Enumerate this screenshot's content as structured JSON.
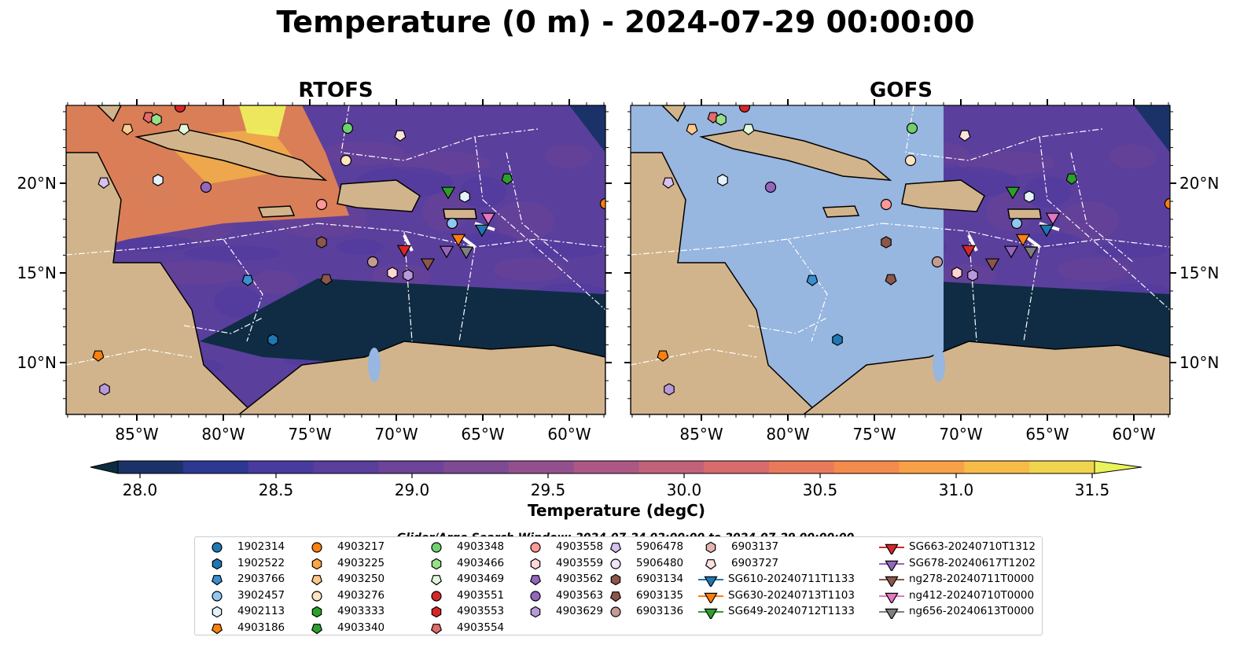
{
  "title": "Temperature (0 m) - 2024-07-29 00:00:00",
  "panels": [
    {
      "title": "RTOFS"
    },
    {
      "title": "GOFS"
    }
  ],
  "axes": {
    "lon_ticks": [
      "85°W",
      "80°W",
      "75°W",
      "70°W",
      "65°W",
      "60°W"
    ],
    "lat_ticks": [
      "20°N",
      "15°N",
      "10°N"
    ]
  },
  "colorbar": {
    "label": "Temperature (degC)",
    "ticks": [
      "28.0",
      "28.5",
      "29.0",
      "29.5",
      "30.0",
      "30.5",
      "31.0",
      "31.5"
    ],
    "colors": [
      "#0c2b3f",
      "#1b3269",
      "#2d3893",
      "#473ba0",
      "#5a3e9c",
      "#6c4398",
      "#7e4a94",
      "#94508e",
      "#ab5885",
      "#c2617a",
      "#d86b6c",
      "#ea795c",
      "#f38b4d",
      "#f8a147",
      "#f7bb47",
      "#f1d44d",
      "#e9f35a"
    ],
    "extend": "both"
  },
  "search_window": "Glider/Argo Search Window: 2024-07-24 02:00:00 to 2024-07-29 00:00:00",
  "legend": {
    "columns": [
      [
        {
          "label": "1902314",
          "shape": "circle",
          "color": "#1f77b4"
        },
        {
          "label": "1902522",
          "shape": "hexagon",
          "color": "#1f77b4"
        },
        {
          "label": "2903766",
          "shape": "pentagon",
          "color": "#3a8fd0"
        },
        {
          "label": "3902457",
          "shape": "circle",
          "color": "#8fc8f0"
        },
        {
          "label": "4902113",
          "shape": "hexagon",
          "color": "#e3f2fd"
        },
        {
          "label": "4903186",
          "shape": "pentagon",
          "color": "#ff7f0e"
        }
      ],
      [
        {
          "label": "4903217",
          "shape": "circle",
          "color": "#ff7f0e"
        },
        {
          "label": "4903225",
          "shape": "hexagon",
          "color": "#ffa545"
        },
        {
          "label": "4903250",
          "shape": "pentagon",
          "color": "#ffc98b"
        },
        {
          "label": "4903276",
          "shape": "circle",
          "color": "#ffe3c2"
        },
        {
          "label": "4903333",
          "shape": "hexagon",
          "color": "#2ca02c"
        },
        {
          "label": "4903340",
          "shape": "pentagon",
          "color": "#2ca02c"
        }
      ],
      [
        {
          "label": "4903348",
          "shape": "circle",
          "color": "#6fd06f"
        },
        {
          "label": "4903466",
          "shape": "hexagon",
          "color": "#98df8a"
        },
        {
          "label": "4903469",
          "shape": "pentagon",
          "color": "#e2f8dc"
        },
        {
          "label": "4903551",
          "shape": "circle",
          "color": "#d62728"
        },
        {
          "label": "4903553",
          "shape": "hexagon",
          "color": "#d62728"
        },
        {
          "label": "4903554",
          "shape": "pentagon",
          "color": "#e66a6a"
        }
      ],
      [
        {
          "label": "4903558",
          "shape": "circle",
          "color": "#ff9896"
        },
        {
          "label": "4903559",
          "shape": "hexagon",
          "color": "#ffd6d5"
        },
        {
          "label": "4903562",
          "shape": "pentagon",
          "color": "#9467bd"
        },
        {
          "label": "4903563",
          "shape": "circle",
          "color": "#9467bd"
        },
        {
          "label": "4903629",
          "shape": "hexagon",
          "color": "#b89adb"
        }
      ],
      [
        {
          "label": "5906478",
          "shape": "pentagon",
          "color": "#d7c1f0"
        },
        {
          "label": "5906480",
          "shape": "circle",
          "color": "#f0e4fb"
        },
        {
          "label": "6903134",
          "shape": "hexagon",
          "color": "#8c564b"
        },
        {
          "label": "6903135",
          "shape": "pentagon",
          "color": "#8c564b"
        },
        {
          "label": "6903136",
          "shape": "circle",
          "color": "#c49c94"
        }
      ],
      [
        {
          "label": "6903137",
          "shape": "hexagon",
          "color": "#e3b5ad"
        },
        {
          "label": "6903727",
          "shape": "pentagon",
          "color": "#fbe2dc"
        },
        {
          "label": "SG610-20240711T1133",
          "shape": "triangle",
          "color": "#1f77b4"
        },
        {
          "label": "SG630-20240713T1103",
          "shape": "triangle",
          "color": "#ff7f0e"
        },
        {
          "label": "SG649-20240712T1133",
          "shape": "triangle",
          "color": "#2ca02c"
        }
      ],
      [
        {
          "label": "SG663-20240710T1312",
          "shape": "triangle",
          "color": "#d62728"
        },
        {
          "label": "SG678-20240617T1202",
          "shape": "triangle",
          "color": "#9467bd"
        },
        {
          "label": "ng278-20240711T0000",
          "shape": "triangle",
          "color": "#8c564b"
        },
        {
          "label": "ng412-20240710T0000",
          "shape": "triangle",
          "color": "#e377c2"
        },
        {
          "label": "ng656-20240613T0000",
          "shape": "triangle",
          "color": "#7f7f7f"
        }
      ]
    ]
  },
  "map_colors": {
    "land": "#d2b48c",
    "ocean_mask": "#97b6e0",
    "warm": "#f08a4b",
    "hot": "#eef35e",
    "cool": "#0c2b3f",
    "mid": "#5b3f9d"
  }
}
